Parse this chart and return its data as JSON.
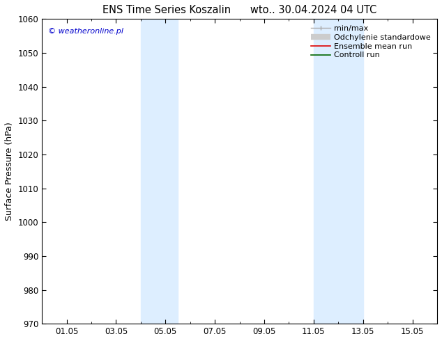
{
  "title": "ENS Time Series Koszalin      wto.. 30.04.2024 04 UTC",
  "ylabel": "Surface Pressure (hPa)",
  "ylim": [
    970,
    1060
  ],
  "yticks": [
    970,
    980,
    990,
    1000,
    1010,
    1020,
    1030,
    1040,
    1050,
    1060
  ],
  "xtick_labels": [
    "01.05",
    "03.05",
    "05.05",
    "07.05",
    "09.05",
    "11.05",
    "13.05",
    "15.05"
  ],
  "xtick_positions": [
    1,
    3,
    5,
    7,
    9,
    11,
    13,
    15
  ],
  "xlim": [
    0,
    16
  ],
  "shaded_bands": [
    {
      "x_start": 4.0,
      "x_end": 5.5
    },
    {
      "x_start": 11.0,
      "x_end": 13.0
    }
  ],
  "shade_color": "#ddeeff",
  "background_color": "#ffffff",
  "watermark": "© weatheronline.pl",
  "title_fontsize": 10.5,
  "axis_label_fontsize": 9,
  "tick_fontsize": 8.5,
  "legend_fontsize": 8,
  "watermark_color": "#0000cc"
}
